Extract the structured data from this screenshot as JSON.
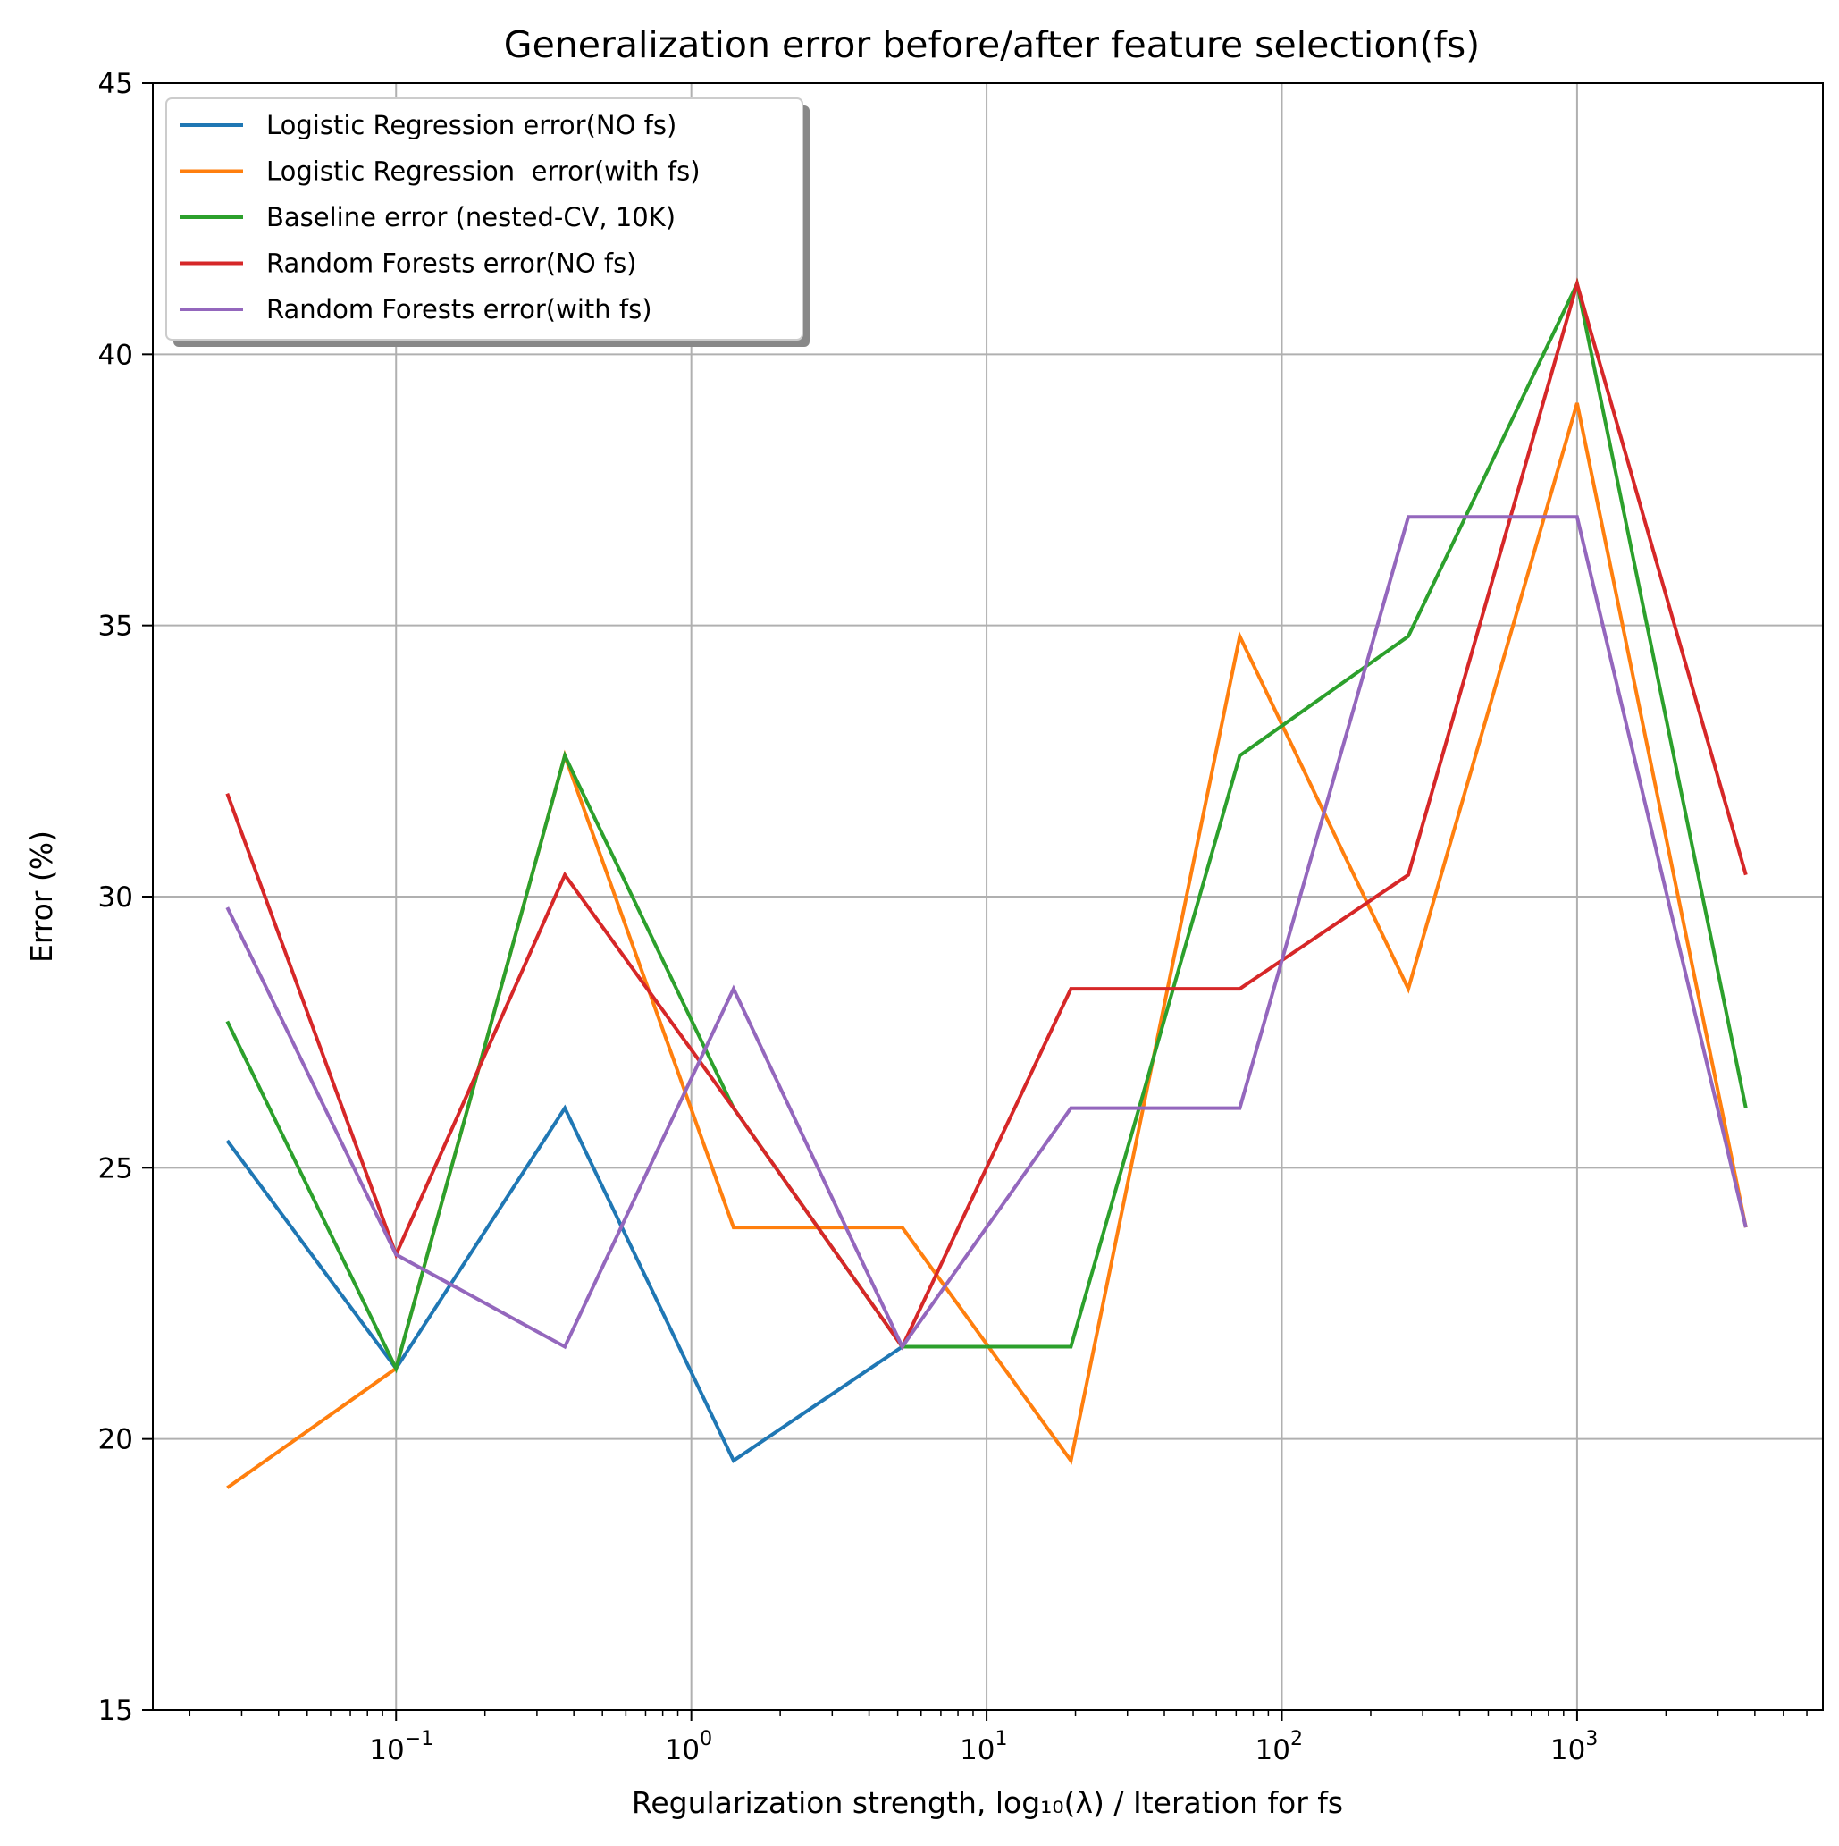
{
  "chart_data": {
    "type": "line",
    "title": "Generalization error before/after feature selection(fs)",
    "xlabel": "Regularization strength, log₁₀(λ) / Iteration for fs",
    "ylabel": "Error (%)",
    "xscale": "log",
    "xlim": [
      0.015,
      6800
    ],
    "ylim": [
      15,
      45
    ],
    "grid": true,
    "legend_position": "top-left",
    "yticks": [
      "15",
      "20",
      "25",
      "30",
      "35",
      "40",
      "45"
    ],
    "xticks": [
      {
        "base": "10",
        "exp": "−1",
        "value": 0.1
      },
      {
        "base": "10",
        "exp": "0",
        "value": 1
      },
      {
        "base": "10",
        "exp": "1",
        "value": 10
      },
      {
        "base": "10",
        "exp": "2",
        "value": 100
      },
      {
        "base": "10",
        "exp": "3",
        "value": 1000
      }
    ],
    "x": [
      0.0268,
      0.1,
      0.373,
      1.39,
      5.18,
      19.3,
      72.0,
      268,
      1000,
      3730
    ],
    "series": [
      {
        "name": "Logistic Regression error(NO fs)",
        "color": "#1f77b4",
        "values": [
          25.5,
          21.3,
          26.1,
          19.6,
          21.7,
          null,
          null,
          null,
          null,
          null
        ]
      },
      {
        "name": "Logistic Regression  error(with fs)",
        "color": "#ff7f0e",
        "values": [
          19.1,
          21.3,
          32.6,
          23.9,
          23.9,
          19.6,
          34.8,
          28.3,
          39.1,
          23.9
        ]
      },
      {
        "name": "Baseline error (nested-CV, 10K)",
        "color": "#2ca02c",
        "values": [
          27.7,
          21.3,
          32.6,
          26.1,
          21.7,
          21.7,
          32.6,
          34.8,
          41.3,
          26.1
        ]
      },
      {
        "name": "Random Forests error(NO fs)",
        "color": "#d62728",
        "values": [
          31.9,
          23.4,
          30.4,
          26.1,
          21.7,
          28.3,
          28.3,
          30.4,
          41.3,
          30.4
        ]
      },
      {
        "name": "Random Forests error(with fs)",
        "color": "#9467bd",
        "values": [
          29.8,
          23.4,
          21.7,
          28.3,
          21.7,
          26.1,
          26.1,
          37.0,
          37.0,
          23.9
        ]
      }
    ]
  }
}
